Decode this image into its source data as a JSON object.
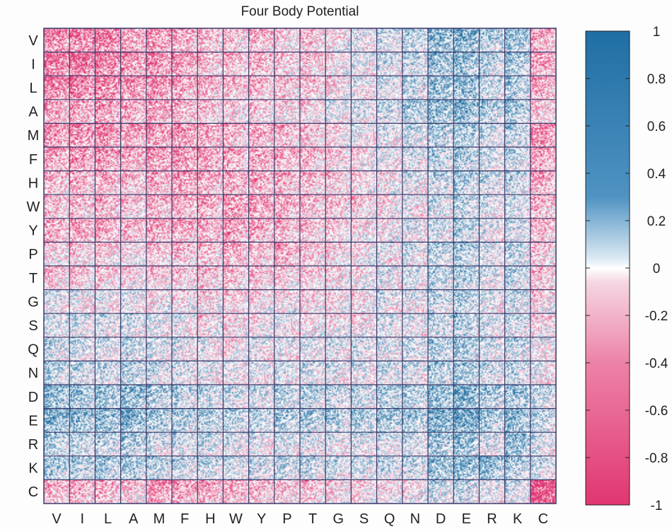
{
  "chart_data": {
    "type": "heatmap",
    "title": "Four Body Potential",
    "xlabel": "",
    "ylabel": "",
    "x_categories": [
      "V",
      "I",
      "L",
      "A",
      "M",
      "F",
      "H",
      "W",
      "Y",
      "P",
      "T",
      "G",
      "S",
      "Q",
      "N",
      "D",
      "E",
      "R",
      "K",
      "C"
    ],
    "y_categories": [
      "V",
      "I",
      "L",
      "A",
      "M",
      "F",
      "H",
      "W",
      "Y",
      "P",
      "T",
      "G",
      "S",
      "Q",
      "N",
      "D",
      "E",
      "R",
      "K",
      "C"
    ],
    "subcells_per_block": 20,
    "colorbar": {
      "range": [
        -1,
        1
      ],
      "ticks": [
        1,
        0.8,
        0.6,
        0.4,
        0.2,
        0,
        -0.2,
        -0.4,
        -0.6,
        -0.8,
        -1
      ],
      "tick_labels": [
        "1",
        "0.8",
        "0.6",
        "0.4",
        "0.2",
        "0",
        "-0.2",
        "-0.4",
        "-0.6",
        "-0.8",
        "-1"
      ],
      "positive_color": "#1f6ea3",
      "zero_color": "#ffffff",
      "negative_color": "#e03672"
    },
    "block_mean_values": [
      [
        -0.55,
        -0.6,
        -0.58,
        -0.4,
        -0.45,
        -0.35,
        -0.25,
        -0.2,
        -0.3,
        -0.15,
        -0.2,
        -0.05,
        0.05,
        0.15,
        0.25,
        0.45,
        0.5,
        0.3,
        0.4,
        -0.35
      ],
      [
        -0.6,
        -0.65,
        -0.6,
        -0.45,
        -0.5,
        -0.4,
        -0.25,
        -0.25,
        -0.3,
        -0.2,
        -0.2,
        -0.05,
        0.05,
        0.15,
        0.2,
        0.4,
        0.45,
        0.25,
        0.35,
        -0.4
      ],
      [
        -0.58,
        -0.6,
        -0.6,
        -0.45,
        -0.5,
        -0.4,
        -0.3,
        -0.25,
        -0.3,
        -0.2,
        -0.2,
        -0.1,
        0.0,
        0.1,
        0.2,
        0.4,
        0.45,
        0.2,
        0.3,
        -0.35
      ],
      [
        -0.35,
        -0.4,
        -0.4,
        -0.35,
        -0.4,
        -0.3,
        -0.2,
        -0.15,
        -0.2,
        -0.1,
        -0.1,
        0.05,
        0.1,
        0.2,
        0.3,
        0.45,
        0.5,
        0.3,
        0.35,
        -0.2
      ],
      [
        -0.5,
        -0.55,
        -0.5,
        -0.4,
        -0.45,
        -0.45,
        -0.35,
        -0.3,
        -0.35,
        -0.25,
        -0.2,
        -0.1,
        0.0,
        0.05,
        0.15,
        0.3,
        0.35,
        0.15,
        0.25,
        -0.5
      ],
      [
        -0.4,
        -0.45,
        -0.45,
        -0.35,
        -0.45,
        -0.45,
        -0.4,
        -0.35,
        -0.35,
        -0.3,
        -0.25,
        -0.15,
        -0.05,
        0.0,
        0.1,
        0.25,
        0.3,
        0.15,
        0.2,
        -0.4
      ],
      [
        -0.3,
        -0.3,
        -0.3,
        -0.25,
        -0.35,
        -0.4,
        -0.35,
        -0.35,
        -0.35,
        -0.3,
        -0.25,
        -0.15,
        -0.1,
        -0.05,
        0.05,
        0.2,
        0.3,
        0.15,
        0.2,
        -0.35
      ],
      [
        -0.25,
        -0.25,
        -0.3,
        -0.2,
        -0.3,
        -0.35,
        -0.35,
        -0.45,
        -0.4,
        -0.35,
        -0.25,
        -0.2,
        -0.15,
        -0.1,
        0.0,
        0.15,
        0.25,
        0.1,
        0.15,
        -0.3
      ],
      [
        -0.35,
        -0.35,
        -0.35,
        -0.3,
        -0.35,
        -0.35,
        -0.35,
        -0.4,
        -0.35,
        -0.25,
        -0.2,
        -0.15,
        -0.1,
        -0.05,
        0.05,
        0.15,
        0.25,
        0.05,
        0.15,
        -0.3
      ],
      [
        -0.1,
        -0.15,
        -0.15,
        -0.05,
        -0.2,
        -0.25,
        -0.25,
        -0.3,
        -0.25,
        -0.35,
        -0.2,
        -0.1,
        -0.05,
        0.0,
        0.1,
        0.25,
        0.3,
        0.1,
        0.2,
        -0.2
      ],
      [
        -0.2,
        -0.2,
        -0.2,
        -0.1,
        -0.15,
        -0.2,
        -0.2,
        -0.2,
        -0.2,
        -0.15,
        -0.15,
        -0.1,
        -0.05,
        0.05,
        0.1,
        0.25,
        0.3,
        0.1,
        0.2,
        -0.2
      ],
      [
        0.05,
        0.0,
        0.0,
        0.05,
        -0.05,
        -0.1,
        -0.1,
        -0.15,
        -0.1,
        -0.05,
        -0.1,
        -0.1,
        -0.05,
        0.05,
        0.05,
        0.2,
        0.3,
        0.05,
        0.15,
        -0.1
      ],
      [
        0.15,
        0.1,
        0.1,
        0.15,
        0.05,
        0.0,
        -0.05,
        -0.1,
        -0.05,
        0.0,
        -0.05,
        -0.05,
        -0.05,
        0.1,
        0.05,
        0.2,
        0.3,
        0.1,
        0.15,
        -0.1
      ],
      [
        0.2,
        0.15,
        0.1,
        0.2,
        0.1,
        0.05,
        0.0,
        -0.05,
        0.0,
        0.05,
        0.05,
        0.05,
        0.1,
        0.1,
        0.15,
        0.3,
        0.35,
        0.1,
        0.2,
        0.0
      ],
      [
        0.25,
        0.2,
        0.2,
        0.25,
        0.15,
        0.1,
        0.05,
        0.0,
        0.05,
        0.1,
        0.1,
        0.05,
        0.05,
        0.15,
        0.1,
        0.3,
        0.35,
        0.15,
        0.2,
        0.0
      ],
      [
        0.45,
        0.4,
        0.4,
        0.45,
        0.3,
        0.25,
        0.2,
        0.15,
        0.15,
        0.25,
        0.25,
        0.2,
        0.2,
        0.3,
        0.3,
        0.45,
        0.55,
        0.3,
        0.4,
        0.2
      ],
      [
        0.5,
        0.45,
        0.45,
        0.5,
        0.35,
        0.3,
        0.3,
        0.25,
        0.25,
        0.3,
        0.3,
        0.3,
        0.3,
        0.35,
        0.35,
        0.55,
        0.6,
        0.35,
        0.45,
        0.25
      ],
      [
        0.3,
        0.25,
        0.2,
        0.3,
        0.15,
        0.15,
        0.15,
        0.1,
        0.05,
        0.1,
        0.1,
        0.05,
        0.1,
        0.1,
        0.15,
        0.35,
        0.4,
        0.1,
        0.45,
        0.1
      ],
      [
        0.35,
        0.3,
        0.3,
        0.35,
        0.25,
        0.2,
        0.2,
        0.15,
        0.15,
        0.2,
        0.2,
        0.15,
        0.15,
        0.2,
        0.2,
        0.4,
        0.5,
        0.45,
        0.3,
        0.15
      ],
      [
        -0.3,
        -0.35,
        -0.35,
        -0.2,
        -0.45,
        -0.4,
        -0.35,
        -0.3,
        -0.3,
        -0.2,
        -0.2,
        -0.1,
        -0.1,
        -0.05,
        -0.05,
        0.15,
        0.2,
        0.05,
        0.1,
        -0.9
      ]
    ],
    "grid": true,
    "legend": "colorbar-right"
  }
}
